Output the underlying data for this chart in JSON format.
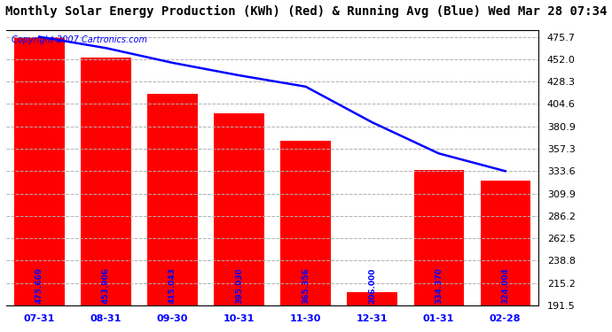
{
  "title": "Monthly Solar Energy Production (KWh) (Red) & Running Avg (Blue) Wed Mar 28 07:34",
  "copyright": "Copyright 2007 Cartronics.com",
  "categories": [
    "07-31",
    "08-31",
    "09-30",
    "10-31",
    "11-30",
    "12-31",
    "01-31",
    "02-28"
  ],
  "bar_values": [
    475.669,
    453.906,
    415.043,
    395.03,
    365.356,
    206.0,
    334.37,
    324.004
  ],
  "running_avg": [
    475.669,
    463.788,
    448.206,
    434.912,
    423.001,
    385.2,
    352.3,
    333.6
  ],
  "bar_color": "#FF0000",
  "line_color": "#0000FF",
  "bar_label_color": "#0000FF",
  "background_color": "#FFFFFF",
  "plot_bg_color": "#FFFFFF",
  "yticks": [
    191.5,
    215.2,
    238.8,
    262.5,
    286.2,
    309.9,
    333.6,
    357.3,
    380.9,
    404.6,
    428.3,
    452.0,
    475.7
  ],
  "ymin": 191.5,
  "ymax": 483.0,
  "grid_color": "#B0B0B0",
  "title_fontsize": 10,
  "copyright_fontsize": 7,
  "tick_fontsize": 8,
  "bar_label_fontsize": 6.5,
  "bar_width": 0.75
}
